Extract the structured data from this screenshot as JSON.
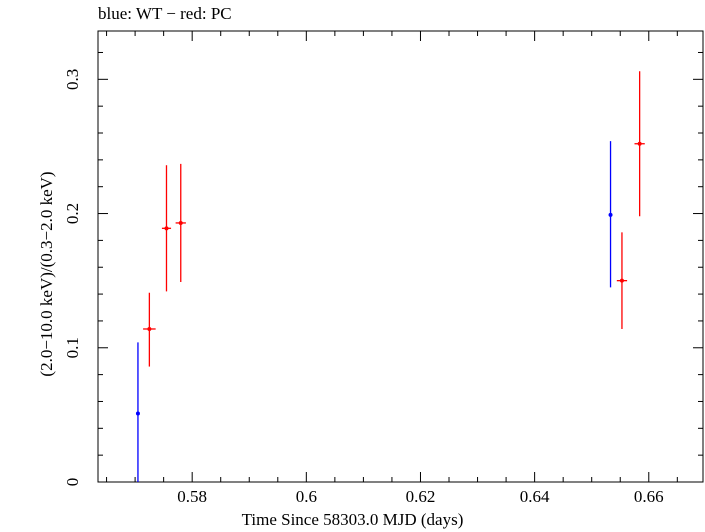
{
  "chart_data": {
    "type": "scatter",
    "title": "blue: WT − red: PC",
    "xlabel": "Time Since 58303.0 MJD (days)",
    "ylabel": "(2.0−10.0 keV)/(0.3−2.0 keV)",
    "xlim": [
      0.5635,
      0.6695
    ],
    "ylim": [
      0,
      0.336
    ],
    "xticks": [
      0.58,
      0.6,
      0.62,
      0.64,
      0.66
    ],
    "xtick_labels": [
      "0.58",
      "0.6",
      "0.62",
      "0.64",
      "0.66"
    ],
    "yticks": [
      0,
      0.1,
      0.2,
      0.3
    ],
    "ytick_labels": [
      "0",
      "0.1",
      "0.2",
      "0.3"
    ],
    "grid": false,
    "series": [
      {
        "name": "WT",
        "color": "#0000ff",
        "points": [
          {
            "x": 0.5705,
            "y": 0.051,
            "xerr": 0.0,
            "ylo": 0.0,
            "yhi": 0.104
          },
          {
            "x": 0.6533,
            "y": 0.199,
            "xerr": 0.0,
            "ylo": 0.145,
            "yhi": 0.254
          }
        ]
      },
      {
        "name": "PC",
        "color": "#ff0000",
        "points": [
          {
            "x": 0.5725,
            "y": 0.114,
            "xerr": 0.0011,
            "ylo": 0.086,
            "yhi": 0.141
          },
          {
            "x": 0.5755,
            "y": 0.189,
            "xerr": 0.0008,
            "ylo": 0.142,
            "yhi": 0.236
          },
          {
            "x": 0.578,
            "y": 0.193,
            "xerr": 0.0009,
            "ylo": 0.149,
            "yhi": 0.237
          },
          {
            "x": 0.6553,
            "y": 0.15,
            "xerr": 0.0009,
            "ylo": 0.114,
            "yhi": 0.186
          },
          {
            "x": 0.6584,
            "y": 0.252,
            "xerr": 0.0009,
            "ylo": 0.198,
            "yhi": 0.306
          }
        ]
      }
    ]
  }
}
